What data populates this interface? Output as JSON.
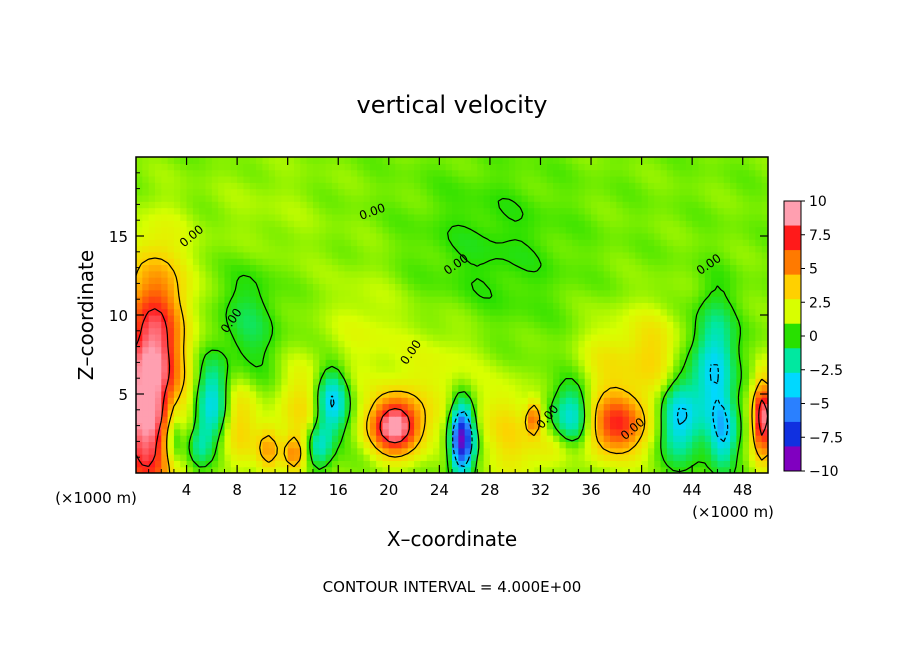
{
  "chart_data": {
    "type": "heatmap",
    "title": "vertical velocity",
    "xlabel": "X–coordinate",
    "ylabel": "Z–coordinate",
    "x_unit_label": "(×1000 m)",
    "z_unit_label": "(×1000 m)",
    "footer": "CONTOUR INTERVAL = 4.000E+00",
    "xlim": [
      0,
      50
    ],
    "ylim": [
      0,
      20
    ],
    "x_ticks": [
      4,
      8,
      12,
      16,
      20,
      24,
      28,
      32,
      36,
      40,
      44,
      48
    ],
    "y_ticks": [
      5,
      10,
      15
    ],
    "contour_label": "0.00",
    "colorbar": {
      "range": [
        -10,
        10
      ],
      "ticks": [
        10,
        7.5,
        5,
        2.5,
        0,
        -2.5,
        -5,
        -7.5,
        -10
      ],
      "tick_labels": [
        "10",
        "7.5",
        "5",
        "2.5",
        "0",
        "−2.5",
        "−5",
        "−7.5",
        "−10"
      ],
      "colors": [
        "#ff9fb0",
        "#ff1a1a",
        "#ff7a00",
        "#ffd000",
        "#d8ff00",
        "#28e000",
        "#00e8a0",
        "#00d8ff",
        "#2a80ff",
        "#1030e0",
        "#8000c0"
      ]
    },
    "features": [
      {
        "x": 0.8,
        "z": 4.5,
        "w": 2.5,
        "v": 9.5,
        "h": 7.0
      },
      {
        "x": 2.3,
        "z": 10.0,
        "w": 2.0,
        "v": 3.0,
        "h": 5.0
      },
      {
        "x": 3.0,
        "z": 2.5,
        "w": 0.8,
        "v": -4.0,
        "h": 2.0
      },
      {
        "x": 6.0,
        "z": 4.5,
        "w": 1.2,
        "v": -4.5,
        "h": 2.5
      },
      {
        "x": 5.0,
        "z": 1.8,
        "w": 1.0,
        "v": -3.0,
        "h": 1.5
      },
      {
        "x": 8.2,
        "z": 3.0,
        "w": 1.5,
        "v": 3.0,
        "h": 3.0
      },
      {
        "x": 10.5,
        "z": 1.5,
        "w": 0.9,
        "v": 3.5,
        "h": 1.5
      },
      {
        "x": 9.0,
        "z": 9.5,
        "w": 2.2,
        "v": -1.8,
        "h": 4.0
      },
      {
        "x": 13.0,
        "z": 4.0,
        "w": 2.0,
        "v": 2.5,
        "h": 3.0
      },
      {
        "x": 12.5,
        "z": 1.2,
        "w": 0.8,
        "v": 4.0,
        "h": 1.2
      },
      {
        "x": 15.5,
        "z": 4.5,
        "w": 1.2,
        "v": -5.5,
        "h": 2.0
      },
      {
        "x": 14.5,
        "z": 1.8,
        "w": 1.0,
        "v": -4.0,
        "h": 1.5
      },
      {
        "x": 20.5,
        "z": 3.0,
        "w": 2.0,
        "v": 9.5,
        "h": 1.8
      },
      {
        "x": 24.0,
        "z": 6.0,
        "w": 4.0,
        "v": 1.5,
        "h": 4.0
      },
      {
        "x": 25.8,
        "z": 2.2,
        "w": 0.9,
        "v": -11.0,
        "h": 2.2
      },
      {
        "x": 29.5,
        "z": 2.5,
        "w": 2.0,
        "v": 2.5,
        "h": 3.0
      },
      {
        "x": 31.5,
        "z": 3.5,
        "w": 0.6,
        "v": 5.0,
        "h": 1.0
      },
      {
        "x": 34.5,
        "z": 3.5,
        "w": 1.5,
        "v": -5.0,
        "h": 2.0
      },
      {
        "x": 33.0,
        "z": 1.5,
        "w": 2.0,
        "v": 2.0,
        "h": 1.5
      },
      {
        "x": 38.0,
        "z": 3.0,
        "w": 2.5,
        "v": 6.5,
        "h": 2.0
      },
      {
        "x": 37.5,
        "z": 7.0,
        "w": 2.5,
        "v": 2.0,
        "h": 3.0
      },
      {
        "x": 43.0,
        "z": 3.5,
        "w": 1.5,
        "v": -5.5,
        "h": 2.5
      },
      {
        "x": 45.8,
        "z": 6.5,
        "w": 1.5,
        "v": -5.0,
        "h": 4.0
      },
      {
        "x": 46.5,
        "z": 2.5,
        "w": 1.0,
        "v": -4.0,
        "h": 2.0
      },
      {
        "x": 49.6,
        "z": 3.5,
        "w": 0.8,
        "v": 9.0,
        "h": 2.5
      },
      {
        "x": 41.0,
        "z": 7.5,
        "w": 2.0,
        "v": 2.5,
        "h": 3.0
      },
      {
        "x": 18.0,
        "z": 9.0,
        "w": 3.0,
        "v": 1.2,
        "h": 4.0
      },
      {
        "x": 28.0,
        "z": 14.0,
        "w": 6.0,
        "v": -1.0,
        "h": 5.0
      },
      {
        "x": 10.0,
        "z": 16.0,
        "w": 5.0,
        "v": 0.6,
        "h": 4.0
      }
    ]
  }
}
